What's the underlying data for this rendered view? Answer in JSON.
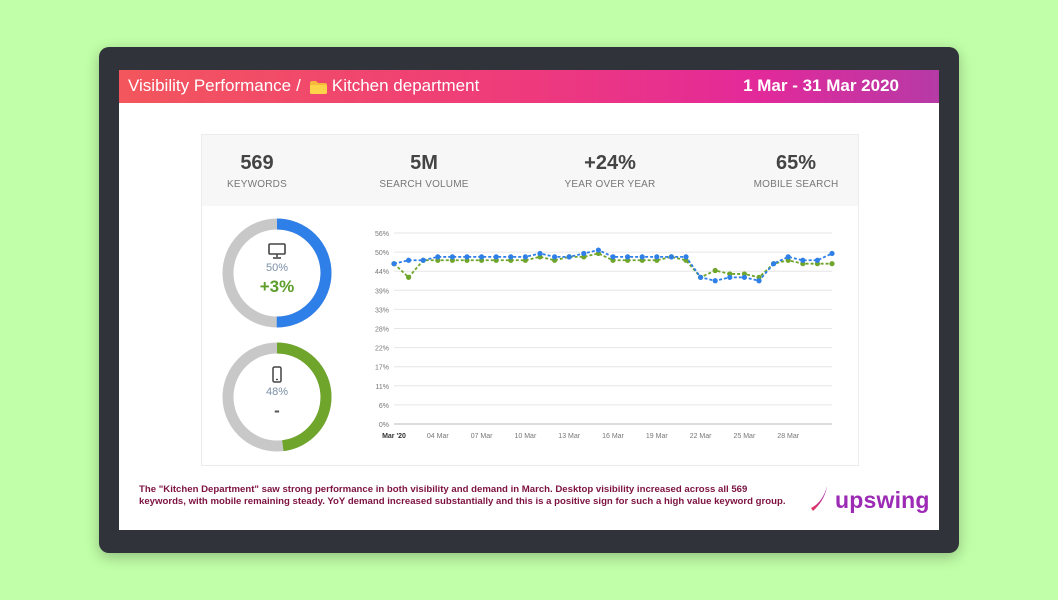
{
  "header": {
    "breadcrumb_root": "Visibility Performance",
    "separator": "/",
    "department": "Kitchen department",
    "date_range": "1 Mar - 31 Mar 2020"
  },
  "kpis": [
    {
      "value": "569",
      "label": "KEYWORDS"
    },
    {
      "value": "5M",
      "label": "SEARCH VOLUME"
    },
    {
      "value": "+24%",
      "label": "YEAR OVER YEAR"
    },
    {
      "value": "65%",
      "label": "MOBILE SEARCH"
    }
  ],
  "donuts": {
    "desktop": {
      "icon": "desktop-icon",
      "percent_label": "50%",
      "fraction": 0.5,
      "change": "+3%",
      "color": "#2f7fe8",
      "change_color": "#5e9e2c"
    },
    "mobile": {
      "icon": "mobile-icon",
      "percent_label": "48%",
      "fraction": 0.48,
      "change": "-",
      "color": "#6fa52b",
      "change_color": "#555555"
    }
  },
  "chart_data": {
    "type": "line",
    "x": [
      "Mar '20",
      "02 Mar",
      "03 Mar",
      "04 Mar",
      "05 Mar",
      "06 Mar",
      "07 Mar",
      "08 Mar",
      "09 Mar",
      "10 Mar",
      "11 Mar",
      "12 Mar",
      "13 Mar",
      "14 Mar",
      "15 Mar",
      "16 Mar",
      "17 Mar",
      "18 Mar",
      "19 Mar",
      "20 Mar",
      "21 Mar",
      "22 Mar",
      "23 Mar",
      "24 Mar",
      "25 Mar",
      "26 Mar",
      "27 Mar",
      "28 Mar",
      "29 Mar",
      "30 Mar",
      "31 Mar"
    ],
    "tick_labels": [
      "Mar '20",
      "04 Mar",
      "07 Mar",
      "10 Mar",
      "13 Mar",
      "16 Mar",
      "19 Mar",
      "22 Mar",
      "25 Mar",
      "28 Mar"
    ],
    "yticks": [
      "0%",
      "6%",
      "11%",
      "17%",
      "22%",
      "28%",
      "33%",
      "39%",
      "44%",
      "50%",
      "56%"
    ],
    "ylim": [
      0,
      56
    ],
    "grid": true,
    "series": [
      {
        "name": "Desktop",
        "color": "#2f7fe8",
        "values": [
          47,
          48,
          48,
          49,
          49,
          49,
          49,
          49,
          49,
          49,
          50,
          49,
          49,
          50,
          51,
          49,
          49,
          49,
          49,
          49,
          49,
          43,
          42,
          43,
          43,
          42,
          47,
          49,
          48,
          48,
          50
        ]
      },
      {
        "name": "Mobile",
        "color": "#6fa52b",
        "values": [
          47,
          43,
          48,
          48,
          48,
          48,
          48,
          48,
          48,
          48,
          49,
          48,
          49,
          49,
          50,
          48,
          48,
          48,
          48,
          49,
          48,
          43,
          45,
          44,
          44,
          43,
          47,
          48,
          47,
          47,
          47
        ]
      }
    ]
  },
  "footer": {
    "text": "The \"Kitchen Department\" saw strong performance in both visibility and demand in March. Desktop visibility increased across all 569 keywords, with mobile remaining steady. YoY demand increased substantially and this is a positive sign for such a high value keyword group."
  },
  "logo": {
    "text": "upswing",
    "colors": [
      "#e8385e",
      "#9c2ab5"
    ]
  }
}
